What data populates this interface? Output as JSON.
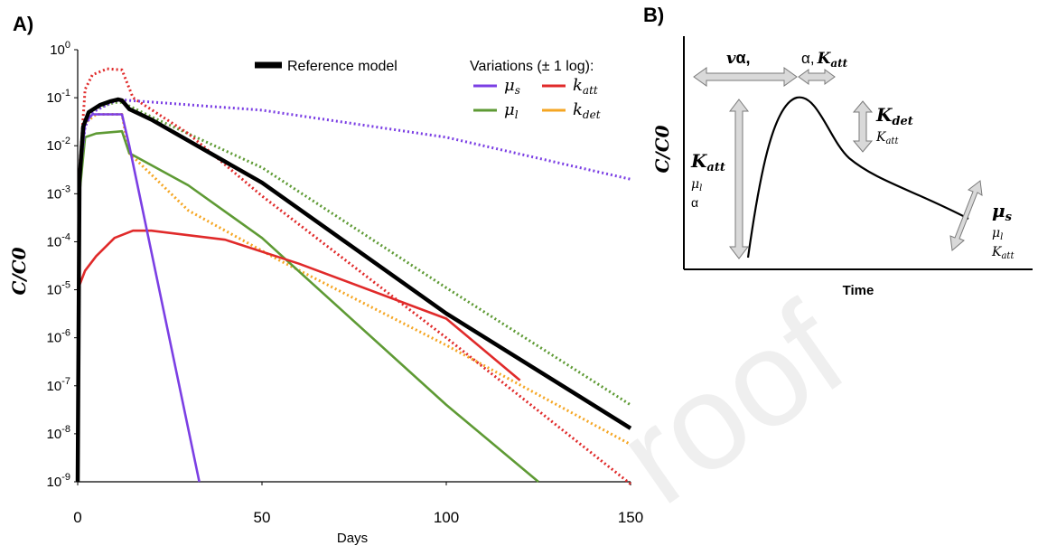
{
  "watermark": "roof",
  "chart_data": [
    {
      "panel_label": "A)",
      "type": "line",
      "xlabel": "Days",
      "ylabel": "C/C0",
      "xlim": [
        0,
        150
      ],
      "ylim_log10": [
        -9,
        0
      ],
      "x_ticks": [
        "0",
        "50",
        "100",
        "150"
      ],
      "y_ticks": [
        {
          "base": "10",
          "exp": "0"
        },
        {
          "base": "10",
          "exp": "-1"
        },
        {
          "base": "10",
          "exp": "-2"
        },
        {
          "base": "10",
          "exp": "-3"
        },
        {
          "base": "10",
          "exp": "-4"
        },
        {
          "base": "10",
          "exp": "-5"
        },
        {
          "base": "10",
          "exp": "-6"
        },
        {
          "base": "10",
          "exp": "-7"
        },
        {
          "base": "10",
          "exp": "-8"
        },
        {
          "base": "10",
          "exp": "-9"
        }
      ],
      "legend": {
        "reference_label": "Reference model",
        "variations_title": "Variations (± 1 log):",
        "placement": "top-right",
        "entries": [
          {
            "symbol": "μ",
            "sub": "s",
            "color": "#7b3fe4"
          },
          {
            "symbol": "k",
            "sub": "att",
            "color": "#e02a2a"
          },
          {
            "symbol": "μ",
            "sub": "l",
            "color": "#5e9a34"
          },
          {
            "symbol": "k",
            "sub": "det",
            "color": "#f5a623"
          }
        ]
      },
      "series": [
        {
          "name": "Reference model",
          "color": "#000000",
          "style": "solid",
          "points": [
            [
              0,
              1e-09
            ],
            [
              0.5,
              0.002
            ],
            [
              1.5,
              0.025
            ],
            [
              3,
              0.05
            ],
            [
              6,
              0.07
            ],
            [
              9,
              0.085
            ],
            [
              11,
              0.092
            ],
            [
              12,
              0.088
            ],
            [
              14,
              0.058
            ],
            [
              20,
              0.035
            ],
            [
              50,
              0.0017
            ],
            [
              100,
              3.2e-06
            ],
            [
              150,
              1.3e-08
            ]
          ]
        },
        {
          "name": "μs",
          "color": "#7b3fe4",
          "style": "solid",
          "points": [
            [
              0,
              1e-09
            ],
            [
              0.5,
              0.002
            ],
            [
              2,
              0.03
            ],
            [
              4,
              0.045
            ],
            [
              12,
              0.045
            ],
            [
              14,
              0.01
            ],
            [
              33,
              1e-09
            ]
          ]
        },
        {
          "name": "μs",
          "color": "#7b3fe4",
          "style": "dotted",
          "points": [
            [
              0,
              1e-09
            ],
            [
              0.5,
              0.002
            ],
            [
              2,
              0.025
            ],
            [
              4,
              0.05
            ],
            [
              10,
              0.085
            ],
            [
              12,
              0.09
            ],
            [
              50,
              0.055
            ],
            [
              100,
              0.015
            ],
            [
              150,
              0.002
            ]
          ]
        },
        {
          "name": "katt",
          "color": "#e02a2a",
          "style": "solid",
          "points": [
            [
              0,
              1e-05
            ],
            [
              2,
              2.5e-05
            ],
            [
              5,
              5e-05
            ],
            [
              10,
              0.00012
            ],
            [
              15,
              0.00017
            ],
            [
              20,
              0.00017
            ],
            [
              40,
              0.00011
            ],
            [
              60,
              3.5e-05
            ],
            [
              100,
              2.5e-06
            ],
            [
              120,
              1.3e-07
            ]
          ]
        },
        {
          "name": "katt",
          "color": "#e02a2a",
          "style": "dotted",
          "points": [
            [
              0,
              1e-09
            ],
            [
              0.5,
              0.003
            ],
            [
              2,
              0.15
            ],
            [
              4,
              0.3
            ],
            [
              8,
              0.4
            ],
            [
              12,
              0.38
            ],
            [
              15,
              0.1
            ],
            [
              30,
              0.018
            ],
            [
              50,
              0.0009
            ],
            [
              100,
              1e-06
            ],
            [
              150,
              9e-10
            ]
          ]
        },
        {
          "name": "μl",
          "color": "#5e9a34",
          "style": "solid",
          "points": [
            [
              0,
              1e-09
            ],
            [
              0.5,
              0.001
            ],
            [
              2,
              0.015
            ],
            [
              5,
              0.018
            ],
            [
              12,
              0.02
            ],
            [
              14,
              0.007
            ],
            [
              30,
              0.0015
            ],
            [
              50,
              0.00012
            ],
            [
              100,
              4e-08
            ],
            [
              125,
              1e-09
            ]
          ]
        },
        {
          "name": "μl",
          "color": "#5e9a34",
          "style": "dotted",
          "points": [
            [
              0,
              1e-09
            ],
            [
              0.5,
              0.002
            ],
            [
              2,
              0.03
            ],
            [
              5,
              0.06
            ],
            [
              10,
              0.08
            ],
            [
              12,
              0.08
            ],
            [
              20,
              0.04
            ],
            [
              50,
              0.0035
            ],
            [
              100,
              1.1e-05
            ],
            [
              150,
              4e-08
            ]
          ]
        },
        {
          "name": "kdet",
          "color": "#f5a623",
          "style": "dotted",
          "points": [
            [
              0,
              1e-09
            ],
            [
              0.5,
              0.002
            ],
            [
              2,
              0.03
            ],
            [
              5,
              0.045
            ],
            [
              12,
              0.045
            ],
            [
              14,
              0.007
            ],
            [
              30,
              0.00045
            ],
            [
              55,
              4e-05
            ],
            [
              100,
              7e-07
            ],
            [
              150,
              6e-09
            ]
          ]
        }
      ]
    },
    {
      "panel_label": "B)",
      "type": "diagram",
      "ylabel": "C/C0",
      "xlabel": "Time",
      "annotations": {
        "v_alpha": "v, α",
        "alpha_katt_prefix": "α,",
        "katt_big": "K",
        "katt_big_sub": "att",
        "katt_mu": "μ",
        "katt_mu_sub": "l",
        "katt_alpha": "α",
        "kdet_big": "K",
        "kdet_big_sub": "det",
        "kdet_small": "K",
        "kdet_small_sub": "att",
        "mus_big": "μ",
        "mus_big_sub": "s",
        "mus_mu": "μ",
        "mus_mu_sub": "l",
        "mus_katt": "K",
        "mus_katt_sub": "att"
      }
    }
  ]
}
